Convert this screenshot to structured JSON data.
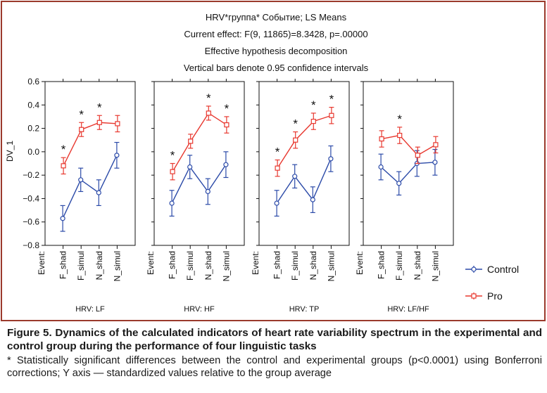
{
  "chart_data": {
    "type": "line",
    "title_lines": [
      "HRV*группа* Событие; LS Means",
      "Current effect: F(9, 11865)=8.3428, p=.00000",
      "Effective hypothesis decomposition",
      "Vertical bars denote 0.95 confidence intervals"
    ],
    "ylabel": "DV_1",
    "ylim": [
      -0.8,
      0.6
    ],
    "yticks": [
      "0.6",
      "0.4",
      "0.2",
      "0.0",
      "−0.2",
      "−0.4",
      "−0.6",
      "−0.8"
    ],
    "event_label": "Event:",
    "categories": [
      "F_shad",
      "F_simul",
      "N_shad",
      "N_simul"
    ],
    "significance_mark": "*",
    "panels": [
      {
        "label": "HRV: LF",
        "series": [
          {
            "name": "Control",
            "values": [
              -0.57,
              -0.24,
              -0.35,
              -0.03
            ],
            "ci": [
              0.11,
              0.1,
              0.11,
              0.11
            ]
          },
          {
            "name": "Pro",
            "values": [
              -0.12,
              0.19,
              0.25,
              0.24
            ],
            "ci": [
              0.07,
              0.06,
              0.06,
              0.07
            ]
          }
        ],
        "significant": [
          true,
          true,
          true,
          false
        ]
      },
      {
        "label": "HRV: HF",
        "series": [
          {
            "name": "Control",
            "values": [
              -0.44,
              -0.13,
              -0.34,
              -0.11
            ],
            "ci": [
              0.11,
              0.1,
              0.11,
              0.11
            ]
          },
          {
            "name": "Pro",
            "values": [
              -0.17,
              0.09,
              0.33,
              0.23
            ],
            "ci": [
              0.07,
              0.06,
              0.06,
              0.07
            ]
          }
        ],
        "significant": [
          true,
          false,
          true,
          true
        ]
      },
      {
        "label": "HRV: TP",
        "series": [
          {
            "name": "Control",
            "values": [
              -0.44,
              -0.21,
              -0.41,
              -0.06
            ],
            "ci": [
              0.11,
              0.1,
              0.11,
              0.11
            ]
          },
          {
            "name": "Pro",
            "values": [
              -0.14,
              0.1,
              0.26,
              0.31
            ],
            "ci": [
              0.07,
              0.07,
              0.07,
              0.07
            ]
          }
        ],
        "significant": [
          true,
          true,
          true,
          true
        ]
      },
      {
        "label": "HRV: LF/HF",
        "series": [
          {
            "name": "Control",
            "values": [
              -0.13,
              -0.27,
              -0.1,
              -0.09
            ],
            "ci": [
              0.11,
              0.1,
              0.11,
              0.11
            ]
          },
          {
            "name": "Pro",
            "values": [
              0.11,
              0.14,
              -0.03,
              0.06
            ],
            "ci": [
              0.07,
              0.07,
              0.07,
              0.07
            ]
          }
        ],
        "significant": [
          false,
          true,
          false,
          false
        ]
      }
    ],
    "legend": [
      {
        "name": "Control",
        "color": "#2b4aa8",
        "marker": "circle"
      },
      {
        "name": "Pro",
        "color": "#e8382f",
        "marker": "square"
      }
    ],
    "legend_position": "right"
  },
  "caption": {
    "title": "Figure 5. Dynamics of the calculated indicators of heart rate variability spectrum in the experimental and control group during the performance of four linguistic tasks",
    "note": "* Statistically significant differences between the control and experimental groups (p<0.0001) using Bonferroni corrections; Y axis — standardized values relative to the group average"
  },
  "colors": {
    "control": "#2b4aa8",
    "pro": "#e8382f",
    "frame": "#9b3a2c",
    "plot_bg": "#ffffff"
  }
}
